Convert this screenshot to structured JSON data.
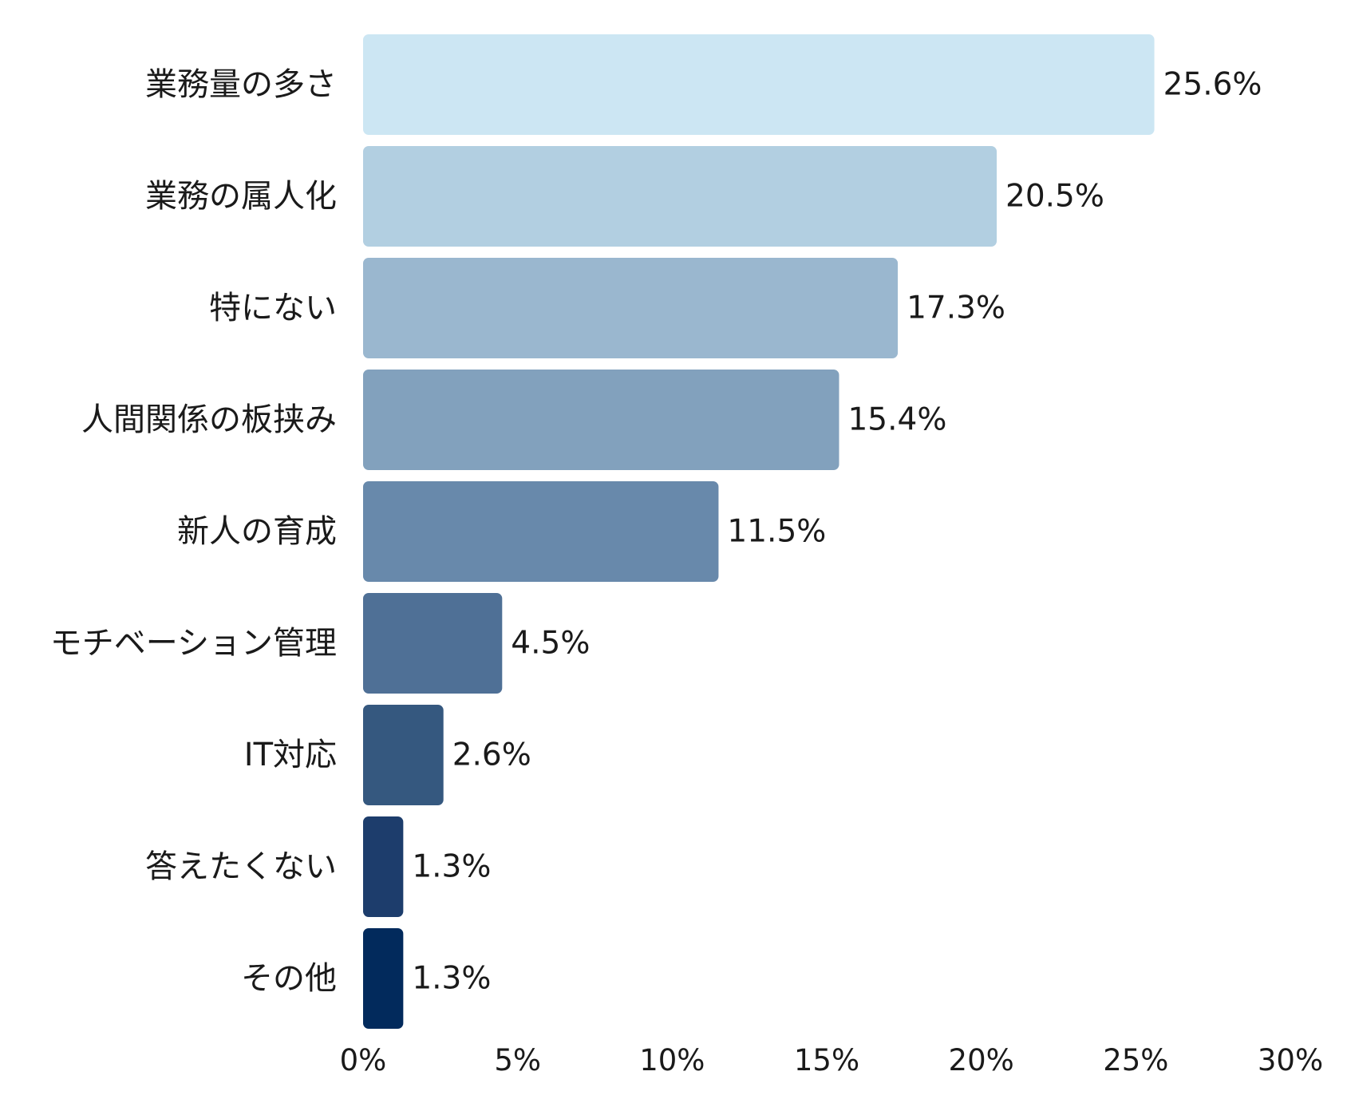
{
  "chart_data": {
    "type": "bar",
    "orientation": "horizontal",
    "title": "",
    "xlabel": "",
    "ylabel": "",
    "xlim": [
      0,
      30
    ],
    "value_unit": "%",
    "grid": false,
    "legend": "none",
    "categories": [
      "業務量の多さ",
      "業務の属人化",
      "特にない",
      "人間関係の板挟み",
      "新人の育成",
      "モチベーション管理",
      "IT対応",
      "答えたくない",
      "その他"
    ],
    "values": [
      25.6,
      20.5,
      17.3,
      15.4,
      11.5,
      4.5,
      2.6,
      1.3,
      1.3
    ],
    "value_labels": [
      "25.6%",
      "20.5%",
      "17.3%",
      "15.4%",
      "11.5%",
      "4.5%",
      "2.6%",
      "1.3%",
      "1.3%"
    ],
    "x_ticks": [
      0,
      5,
      10,
      15,
      20,
      25,
      30
    ],
    "x_tick_labels": [
      "0%",
      "5%",
      "10%",
      "15%",
      "20%",
      "25%",
      "30%"
    ],
    "colors": [
      "#cce6f3",
      "#b2cfe1",
      "#9ab7cf",
      "#82a1bd",
      "#6889ab",
      "#4f7096",
      "#35587f",
      "#1d3d6c",
      "#022a5c"
    ]
  }
}
